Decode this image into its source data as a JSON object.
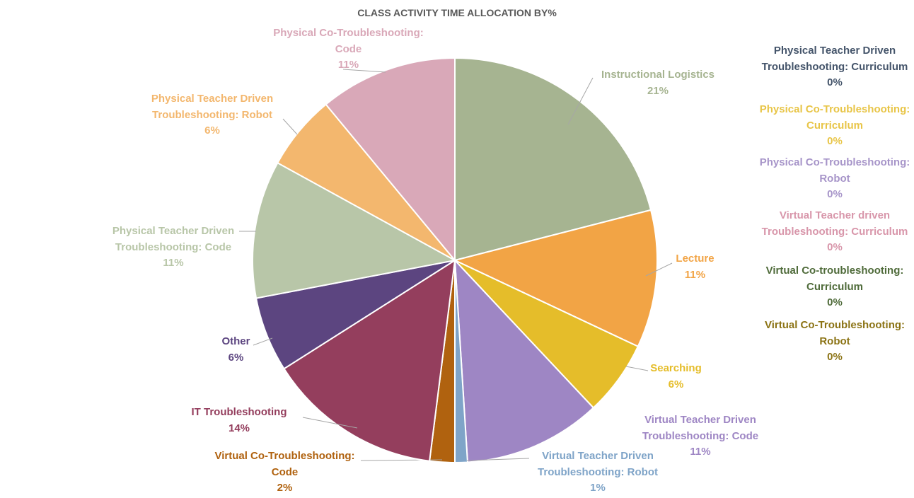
{
  "chart_data": {
    "type": "pie",
    "title": "CLASS ACTIVITY TIME ALLOCATION BY%",
    "slices": [
      {
        "name": "Instructional Logistics",
        "name_lines": [
          "Instructional Logistics"
        ],
        "value": 21,
        "label": "21%",
        "color": "#A6B491"
      },
      {
        "name": "Lecture",
        "name_lines": [
          "Lecture"
        ],
        "value": 11,
        "label": "11%",
        "color": "#F2A445"
      },
      {
        "name": "Searching",
        "name_lines": [
          "Searching"
        ],
        "value": 6,
        "label": "6%",
        "color": "#E5BD2A"
      },
      {
        "name": "Virtual Teacher Driven Troubleshooting: Code",
        "name_lines": [
          "Virtual Teacher Driven",
          "Troubleshooting: Code"
        ],
        "value": 11,
        "label": "11%",
        "color": "#9E86C4"
      },
      {
        "name": "Virtual Teacher Driven Troubleshooting: Robot",
        "name_lines": [
          "Virtual Teacher Driven",
          "Troubleshooting: Robot"
        ],
        "value": 1,
        "label": "1%",
        "color": "#7FA4C8"
      },
      {
        "name": "Virtual Co-Troubleshooting: Code",
        "name_lines": [
          "Virtual Co-Troubleshooting:",
          "Code"
        ],
        "value": 2,
        "label": "2%",
        "color": "#B0620F"
      },
      {
        "name": "IT Troubleshooting",
        "name_lines": [
          "IT Troubleshooting"
        ],
        "value": 14,
        "label": "14%",
        "color": "#943E5D"
      },
      {
        "name": "Other",
        "name_lines": [
          "Other"
        ],
        "value": 6,
        "label": "6%",
        "color": "#5C4580"
      },
      {
        "name": "Physical Teacher Driven Troubleshooting: Code",
        "name_lines": [
          "Physical Teacher Driven",
          "Troubleshooting: Code"
        ],
        "value": 11,
        "label": "11%",
        "color": "#B8C6A8"
      },
      {
        "name": "Physical Teacher Driven Troubleshooting: Robot",
        "name_lines": [
          "Physical Teacher Driven",
          "Troubleshooting: Robot"
        ],
        "value": 6,
        "label": "6%",
        "color": "#F3B76E"
      },
      {
        "name": "Physical Co-Troubleshooting: Code",
        "name_lines": [
          "Physical Co-Troubleshooting:",
          "Code"
        ],
        "value": 11,
        "label": "11%",
        "color": "#D9A8B8"
      }
    ],
    "zero_slices": [
      {
        "name": "Physical Teacher Driven Troubleshooting: Curriculum",
        "name_lines": [
          "Physical Teacher Driven",
          "Troubleshooting: Curriculum"
        ],
        "value": 0,
        "label": "0%",
        "color": "#44546A"
      },
      {
        "name": "Physical Co-Troubleshooting: Curriculum",
        "name_lines": [
          "Physical Co-Troubleshooting:",
          "Curriculum"
        ],
        "value": 0,
        "label": "0%",
        "color": "#E8C547"
      },
      {
        "name": "Physical Co-Troubleshooting: Robot",
        "name_lines": [
          "Physical Co-Troubleshooting:",
          "Robot"
        ],
        "value": 0,
        "label": "0%",
        "color": "#A795C9"
      },
      {
        "name": "Virtual Teacher driven Troubleshooting: Curriculum",
        "name_lines": [
          "Virtual Teacher driven",
          "Troubleshooting: Curriculum"
        ],
        "value": 0,
        "label": "0%",
        "color": "#D896AA"
      },
      {
        "name": "Virtual Co-troubleshooting: Curriculum",
        "name_lines": [
          "Virtual Co-troubleshooting:",
          "Curriculum"
        ],
        "value": 0,
        "label": "0%",
        "color": "#4F6B3A"
      },
      {
        "name": "Virtual Co-Troubleshooting: Robot",
        "name_lines": [
          "Virtual Co-Troubleshooting:",
          "Robot"
        ],
        "value": 0,
        "label": "0%",
        "color": "#8C7416"
      }
    ]
  }
}
